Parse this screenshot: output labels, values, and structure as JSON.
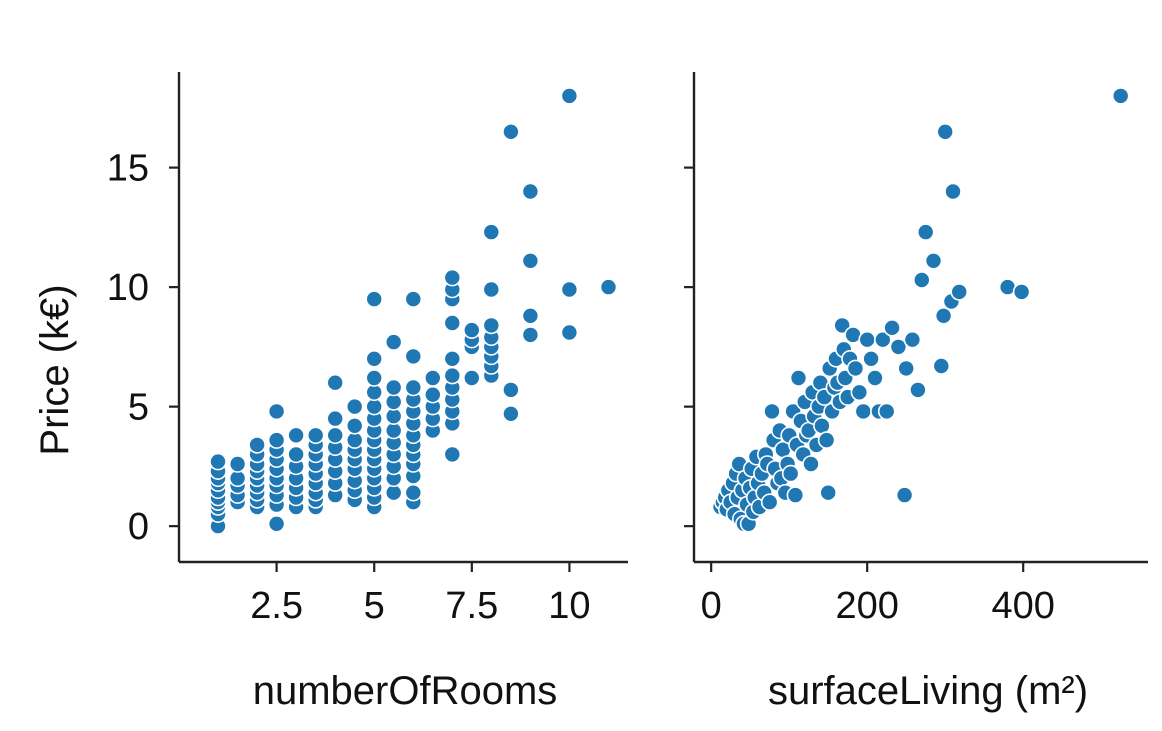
{
  "chart_data": {
    "type": "scatter",
    "ylabel": "Price (k€)",
    "ylim": [
      -1.5,
      19.0
    ],
    "yticks": [
      "0",
      "5",
      "10",
      "15"
    ],
    "point_color": "#1f77b4",
    "point_edge_color": "#ffffff",
    "grid": false,
    "panels": [
      {
        "xlabel": "numberOfRooms",
        "xlim": [
          0.0,
          11.5
        ],
        "xticks": [
          "2.5",
          "5",
          "7.5",
          "10"
        ],
        "points": [
          [
            1,
            0
          ],
          [
            1,
            0.5
          ],
          [
            1,
            0.8
          ],
          [
            1,
            1.0
          ],
          [
            1,
            1.2
          ],
          [
            1,
            1.5
          ],
          [
            1,
            1.8
          ],
          [
            1,
            2.0
          ],
          [
            1,
            2.3
          ],
          [
            1,
            2.7
          ],
          [
            1.5,
            1.0
          ],
          [
            1.5,
            1.3
          ],
          [
            1.5,
            1.7
          ],
          [
            1.5,
            2.0
          ],
          [
            1.5,
            2.6
          ],
          [
            2,
            0.8
          ],
          [
            2,
            1.1
          ],
          [
            2,
            1.4
          ],
          [
            2,
            1.7
          ],
          [
            2,
            2.0
          ],
          [
            2,
            2.3
          ],
          [
            2,
            2.6
          ],
          [
            2,
            3.0
          ],
          [
            2,
            3.4
          ],
          [
            2.5,
            0.1
          ],
          [
            2.5,
            0.9
          ],
          [
            2.5,
            1.3
          ],
          [
            2.5,
            1.7
          ],
          [
            2.5,
            2.0
          ],
          [
            2.5,
            2.4
          ],
          [
            2.5,
            2.8
          ],
          [
            2.5,
            3.2
          ],
          [
            2.5,
            3.6
          ],
          [
            2.5,
            4.8
          ],
          [
            3,
            0.8
          ],
          [
            3,
            1.2
          ],
          [
            3,
            1.6
          ],
          [
            3,
            2.0
          ],
          [
            3,
            2.5
          ],
          [
            3,
            3.0
          ],
          [
            3,
            3.8
          ],
          [
            3.5,
            0.8
          ],
          [
            3.5,
            1.1
          ],
          [
            3.5,
            1.4
          ],
          [
            3.5,
            1.8
          ],
          [
            3.5,
            2.2
          ],
          [
            3.5,
            2.6
          ],
          [
            3.5,
            3.0
          ],
          [
            3.5,
            3.4
          ],
          [
            3.5,
            3.8
          ],
          [
            4,
            1.3
          ],
          [
            4,
            1.8
          ],
          [
            4,
            2.3
          ],
          [
            4,
            2.8
          ],
          [
            4,
            3.3
          ],
          [
            4,
            3.8
          ],
          [
            4,
            4.5
          ],
          [
            4,
            6.0
          ],
          [
            4.5,
            1.1
          ],
          [
            4.5,
            1.5
          ],
          [
            4.5,
            1.9
          ],
          [
            4.5,
            2.4
          ],
          [
            4.5,
            2.8
          ],
          [
            4.5,
            3.2
          ],
          [
            4.5,
            3.6
          ],
          [
            4.5,
            4.2
          ],
          [
            4.5,
            5.0
          ],
          [
            5,
            0.8
          ],
          [
            5,
            1.2
          ],
          [
            5,
            1.6
          ],
          [
            5,
            2.0
          ],
          [
            5,
            2.4
          ],
          [
            5,
            2.8
          ],
          [
            5,
            3.2
          ],
          [
            5,
            3.6
          ],
          [
            5,
            4.0
          ],
          [
            5,
            4.5
          ],
          [
            5,
            5.0
          ],
          [
            5,
            5.6
          ],
          [
            5,
            6.2
          ],
          [
            5,
            7.0
          ],
          [
            5,
            9.5
          ],
          [
            5.5,
            1.4
          ],
          [
            5.5,
            2.0
          ],
          [
            5.5,
            2.5
          ],
          [
            5.5,
            3.0
          ],
          [
            5.5,
            3.5
          ],
          [
            5.5,
            4.0
          ],
          [
            5.5,
            4.6
          ],
          [
            5.5,
            5.2
          ],
          [
            5.5,
            5.8
          ],
          [
            5.5,
            7.7
          ],
          [
            6,
            1.0
          ],
          [
            6,
            1.4
          ],
          [
            6,
            2.1
          ],
          [
            6,
            2.6
          ],
          [
            6,
            3.0
          ],
          [
            6,
            3.4
          ],
          [
            6,
            3.8
          ],
          [
            6,
            4.3
          ],
          [
            6,
            4.8
          ],
          [
            6,
            5.3
          ],
          [
            6,
            5.8
          ],
          [
            6,
            7.1
          ],
          [
            6,
            9.5
          ],
          [
            6.5,
            4.0
          ],
          [
            6.5,
            4.5
          ],
          [
            6.5,
            5.0
          ],
          [
            6.5,
            5.5
          ],
          [
            6.5,
            6.2
          ],
          [
            7,
            3.0
          ],
          [
            7,
            4.3
          ],
          [
            7,
            4.8
          ],
          [
            7,
            5.3
          ],
          [
            7,
            5.8
          ],
          [
            7,
            6.3
          ],
          [
            7,
            7.0
          ],
          [
            7,
            8.5
          ],
          [
            7,
            9.5
          ],
          [
            7,
            9.9
          ],
          [
            7,
            10.4
          ],
          [
            7.5,
            6.2
          ],
          [
            7.5,
            7.5
          ],
          [
            7.5,
            7.8
          ],
          [
            7.5,
            8.2
          ],
          [
            8,
            6.3
          ],
          [
            8,
            6.7
          ],
          [
            8,
            7.1
          ],
          [
            8,
            7.5
          ],
          [
            8,
            7.9
          ],
          [
            8,
            8.4
          ],
          [
            8,
            9.9
          ],
          [
            8,
            12.3
          ],
          [
            8.5,
            4.7
          ],
          [
            8.5,
            5.7
          ],
          [
            8.5,
            16.5
          ],
          [
            9,
            8.0
          ],
          [
            9,
            8.8
          ],
          [
            9,
            11.1
          ],
          [
            9,
            14.0
          ],
          [
            10,
            8.1
          ],
          [
            10,
            9.9
          ],
          [
            10,
            18.0
          ],
          [
            11,
            10.0
          ]
        ]
      },
      {
        "xlabel": "surfaceLiving (m²)",
        "xlim": [
          -22.0,
          560.0
        ],
        "xticks": [
          "0",
          "200",
          "400"
        ],
        "points": [
          [
            12,
            0.8
          ],
          [
            15,
            1.0
          ],
          [
            18,
            1.2
          ],
          [
            20,
            0.7
          ],
          [
            22,
            1.5
          ],
          [
            25,
            1.0
          ],
          [
            28,
            1.8
          ],
          [
            30,
            0.5
          ],
          [
            32,
            2.2
          ],
          [
            34,
            1.2
          ],
          [
            36,
            2.6
          ],
          [
            38,
            0.3
          ],
          [
            40,
            1.5
          ],
          [
            42,
            0.1
          ],
          [
            44,
            2.0
          ],
          [
            46,
            0.9
          ],
          [
            48,
            0.1
          ],
          [
            50,
            1.6
          ],
          [
            52,
            2.4
          ],
          [
            54,
            0.6
          ],
          [
            56,
            1.2
          ],
          [
            58,
            2.9
          ],
          [
            60,
            1.8
          ],
          [
            62,
            0.8
          ],
          [
            65,
            2.2
          ],
          [
            68,
            1.4
          ],
          [
            70,
            3.0
          ],
          [
            72,
            2.6
          ],
          [
            75,
            1.0
          ],
          [
            78,
            4.8
          ],
          [
            80,
            3.6
          ],
          [
            82,
            2.4
          ],
          [
            85,
            1.8
          ],
          [
            88,
            4.0
          ],
          [
            90,
            2.0
          ],
          [
            92,
            3.2
          ],
          [
            95,
            1.4
          ],
          [
            98,
            2.6
          ],
          [
            100,
            3.8
          ],
          [
            102,
            2.2
          ],
          [
            105,
            4.8
          ],
          [
            108,
            1.3
          ],
          [
            110,
            3.4
          ],
          [
            112,
            6.2
          ],
          [
            115,
            4.4
          ],
          [
            118,
            3.0
          ],
          [
            120,
            5.2
          ],
          [
            122,
            3.8
          ],
          [
            125,
            4.0
          ],
          [
            128,
            2.6
          ],
          [
            130,
            5.6
          ],
          [
            132,
            4.6
          ],
          [
            135,
            3.4
          ],
          [
            138,
            5.0
          ],
          [
            140,
            6.0
          ],
          [
            142,
            4.2
          ],
          [
            145,
            5.4
          ],
          [
            148,
            3.6
          ],
          [
            150,
            1.4
          ],
          [
            152,
            6.6
          ],
          [
            155,
            4.8
          ],
          [
            158,
            5.8
          ],
          [
            160,
            7.0
          ],
          [
            162,
            6.0
          ],
          [
            165,
            5.2
          ],
          [
            168,
            8.4
          ],
          [
            170,
            7.4
          ],
          [
            172,
            6.2
          ],
          [
            175,
            5.4
          ],
          [
            178,
            7.0
          ],
          [
            182,
            8.0
          ],
          [
            185,
            6.6
          ],
          [
            190,
            5.6
          ],
          [
            195,
            4.8
          ],
          [
            200,
            7.8
          ],
          [
            205,
            7.0
          ],
          [
            210,
            6.2
          ],
          [
            215,
            4.8
          ],
          [
            220,
            7.8
          ],
          [
            225,
            4.8
          ],
          [
            232,
            8.3
          ],
          [
            240,
            7.5
          ],
          [
            248,
            1.3
          ],
          [
            250,
            6.6
          ],
          [
            258,
            7.8
          ],
          [
            265,
            5.7
          ],
          [
            270,
            10.3
          ],
          [
            275,
            12.3
          ],
          [
            285,
            11.1
          ],
          [
            295,
            6.7
          ],
          [
            298,
            8.8
          ],
          [
            300,
            16.5
          ],
          [
            308,
            9.4
          ],
          [
            310,
            14.0
          ],
          [
            318,
            9.8
          ],
          [
            380,
            10.0
          ],
          [
            398,
            9.8
          ],
          [
            525,
            18.0
          ]
        ]
      }
    ]
  }
}
